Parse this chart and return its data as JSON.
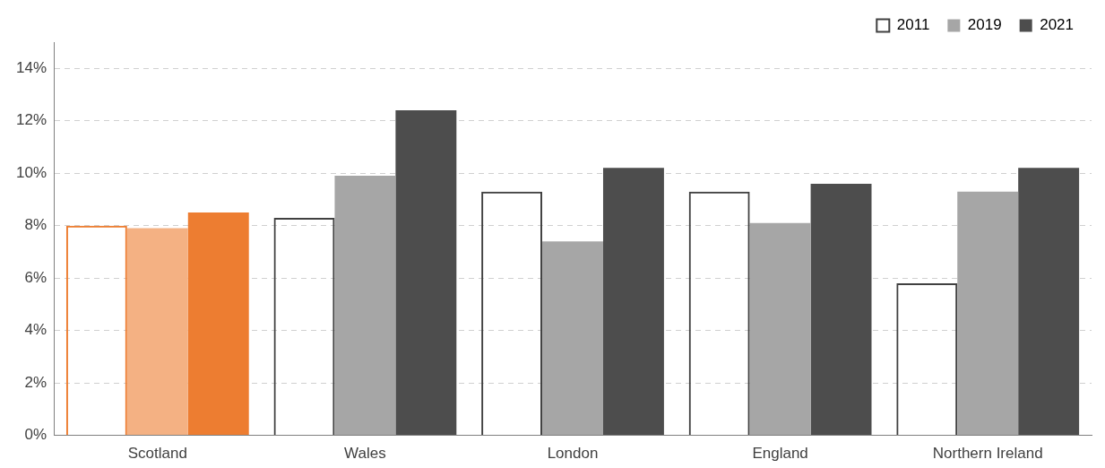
{
  "chart_data": {
    "type": "bar",
    "categories": [
      "Scotland",
      "Wales",
      "London",
      "England",
      "Northern Ireland"
    ],
    "series": [
      {
        "name": "2011",
        "color": "#404040",
        "colors": [
          "#ed7d31",
          "#404040",
          "#404040",
          "#404040",
          "#404040"
        ],
        "values": [
          8.0,
          8.3,
          9.3,
          9.3,
          5.8
        ]
      },
      {
        "name": "2019",
        "color": "#a6a6a6",
        "colors": [
          "#f4b183",
          "#a6a6a6",
          "#a6a6a6",
          "#a6a6a6",
          "#a6a6a6"
        ],
        "values": [
          7.9,
          9.9,
          7.4,
          8.1,
          9.3
        ]
      },
      {
        "name": "2021",
        "color": "#4d4d4d",
        "colors": [
          "#ed7d31",
          "#4d4d4d",
          "#4d4d4d",
          "#4d4d4d",
          "#4d4d4d"
        ],
        "values": [
          8.5,
          12.4,
          10.2,
          9.6,
          10.2
        ]
      }
    ],
    "ylim": [
      0,
      15
    ],
    "yticks": [
      {
        "value": 0,
        "label": "0%"
      },
      {
        "value": 2,
        "label": "2%"
      },
      {
        "value": 4,
        "label": "4%"
      },
      {
        "value": 6,
        "label": "6%"
      },
      {
        "value": 8,
        "label": "8%"
      },
      {
        "value": 10,
        "label": "10%"
      },
      {
        "value": 12,
        "label": "12%"
      },
      {
        "value": 14,
        "label": "14%"
      }
    ],
    "grid": "y",
    "legend": "top right"
  }
}
